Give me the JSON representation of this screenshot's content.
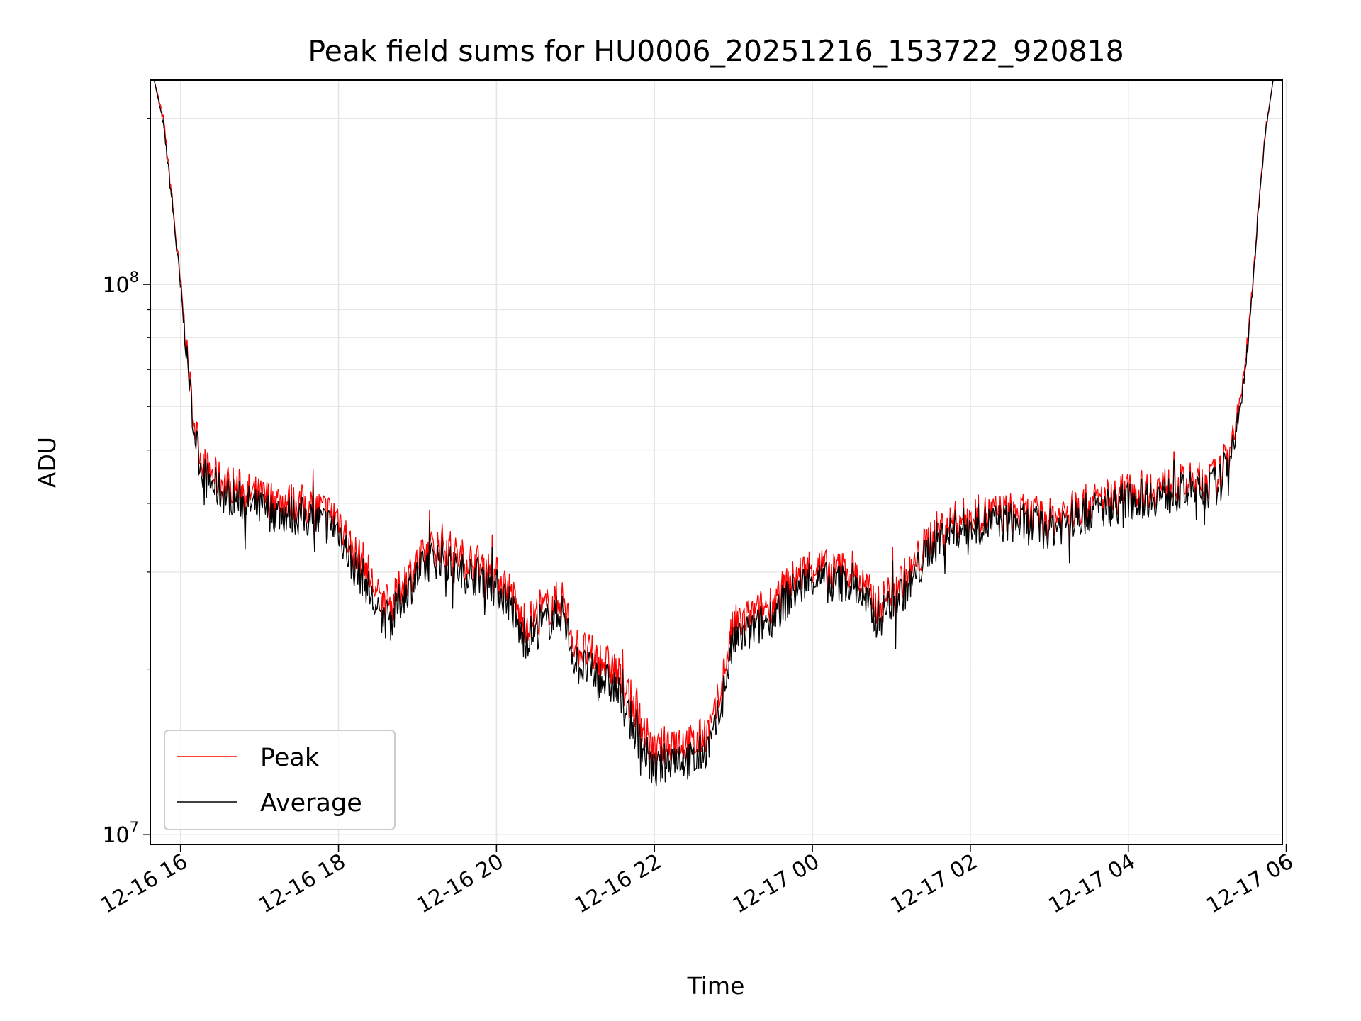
{
  "chart_data": {
    "type": "line",
    "title": "Peak field sums for HU0006_20251216_153722_920818",
    "xlabel": "Time",
    "ylabel": "ADU",
    "y_scale": "log",
    "grid": true,
    "legend_position": "lower-left",
    "x_ticks": [
      "12-16 16",
      "12-16 18",
      "12-16 20",
      "12-16 22",
      "12-17 00",
      "12-17 02",
      "12-17 04",
      "12-17 06"
    ],
    "y_ticks": [
      {
        "value": 10000000,
        "base": "10",
        "exp": "7"
      },
      {
        "value": 100000000,
        "base": "10",
        "exp": "8"
      }
    ],
    "xlim": [
      "2025-12-16T15:37",
      "2025-12-17T05:57"
    ],
    "ylim": [
      9600000,
      235000000
    ],
    "series": [
      {
        "name": "Peak",
        "color": "#ff0000",
        "points": [
          [
            "2025-12-16T15:40",
            235000000
          ],
          [
            "2025-12-16T15:47",
            200000000
          ],
          [
            "2025-12-16T15:54",
            140000000
          ],
          [
            "2025-12-16T16:00",
            100000000
          ],
          [
            "2025-12-16T16:05",
            75000000
          ],
          [
            "2025-12-16T16:10",
            57000000
          ],
          [
            "2025-12-16T16:15",
            49000000
          ],
          [
            "2025-12-16T16:20",
            46000000
          ],
          [
            "2025-12-16T16:30",
            44000000
          ],
          [
            "2025-12-16T17:00",
            41000000
          ],
          [
            "2025-12-16T17:30",
            40000000
          ],
          [
            "2025-12-16T18:00",
            38000000
          ],
          [
            "2025-12-16T18:10",
            33000000
          ],
          [
            "2025-12-16T18:20",
            31000000
          ],
          [
            "2025-12-16T18:30",
            27000000
          ],
          [
            "2025-12-16T18:40",
            26000000
          ],
          [
            "2025-12-16T18:50",
            29000000
          ],
          [
            "2025-12-16T19:00",
            31000000
          ],
          [
            "2025-12-16T19:10",
            33000000
          ],
          [
            "2025-12-16T19:20",
            34000000
          ],
          [
            "2025-12-16T19:30",
            32000000
          ],
          [
            "2025-12-16T19:50",
            31000000
          ],
          [
            "2025-12-16T20:10",
            28000000
          ],
          [
            "2025-12-16T20:20",
            24000000
          ],
          [
            "2025-12-16T20:30",
            25000000
          ],
          [
            "2025-12-16T20:40",
            26000000
          ],
          [
            "2025-12-16T20:50",
            27000000
          ],
          [
            "2025-12-16T21:00",
            22000000
          ],
          [
            "2025-12-16T21:15",
            21000000
          ],
          [
            "2025-12-16T21:30",
            20000000
          ],
          [
            "2025-12-16T21:45",
            17000000
          ],
          [
            "2025-12-16T22:00",
            14000000
          ],
          [
            "2025-12-16T22:15",
            15000000
          ],
          [
            "2025-12-16T22:30",
            14500000
          ],
          [
            "2025-12-16T22:45",
            16000000
          ],
          [
            "2025-12-16T22:55",
            21000000
          ],
          [
            "2025-12-16T23:00",
            24000000
          ],
          [
            "2025-12-16T23:15",
            25000000
          ],
          [
            "2025-12-16T23:30",
            26500000
          ],
          [
            "2025-12-16T23:45",
            29000000
          ],
          [
            "2025-12-17T00:00",
            31000000
          ],
          [
            "2025-12-17T00:15",
            30000000
          ],
          [
            "2025-12-17T00:30",
            30500000
          ],
          [
            "2025-12-17T00:40",
            28000000
          ],
          [
            "2025-12-17T00:50",
            26000000
          ],
          [
            "2025-12-17T01:00",
            28000000
          ],
          [
            "2025-12-17T01:15",
            30000000
          ],
          [
            "2025-12-17T01:30",
            35000000
          ],
          [
            "2025-12-17T01:45",
            37000000
          ],
          [
            "2025-12-17T02:00",
            38000000
          ],
          [
            "2025-12-17T02:30",
            38500000
          ],
          [
            "2025-12-17T03:00",
            37500000
          ],
          [
            "2025-12-17T03:30",
            40000000
          ],
          [
            "2025-12-17T04:00",
            42000000
          ],
          [
            "2025-12-17T04:30",
            43000000
          ],
          [
            "2025-12-17T05:00",
            44000000
          ],
          [
            "2025-12-17T05:10",
            45000000
          ],
          [
            "2025-12-17T05:18",
            52000000
          ],
          [
            "2025-12-17T05:25",
            60000000
          ],
          [
            "2025-12-17T05:32",
            85000000
          ],
          [
            "2025-12-17T05:38",
            130000000
          ],
          [
            "2025-12-17T05:44",
            190000000
          ],
          [
            "2025-12-17T05:50",
            235000000
          ]
        ]
      },
      {
        "name": "Average",
        "color": "#000000",
        "points": [
          [
            "2025-12-16T15:40",
            235000000
          ],
          [
            "2025-12-16T15:47",
            195000000
          ],
          [
            "2025-12-16T15:54",
            138000000
          ],
          [
            "2025-12-16T16:00",
            98000000
          ],
          [
            "2025-12-16T16:05",
            73000000
          ],
          [
            "2025-12-16T16:10",
            55000000
          ],
          [
            "2025-12-16T16:15",
            47000000
          ],
          [
            "2025-12-16T16:20",
            44000000
          ],
          [
            "2025-12-16T16:30",
            42000000
          ],
          [
            "2025-12-16T17:00",
            39000000
          ],
          [
            "2025-12-16T17:30",
            38000000
          ],
          [
            "2025-12-16T18:00",
            36000000
          ],
          [
            "2025-12-16T18:10",
            31000000
          ],
          [
            "2025-12-16T18:20",
            29000000
          ],
          [
            "2025-12-16T18:30",
            25000000
          ],
          [
            "2025-12-16T18:40",
            24500000
          ],
          [
            "2025-12-16T18:50",
            27500000
          ],
          [
            "2025-12-16T19:00",
            29500000
          ],
          [
            "2025-12-16T19:10",
            31500000
          ],
          [
            "2025-12-16T19:20",
            32000000
          ],
          [
            "2025-12-16T19:30",
            30000000
          ],
          [
            "2025-12-16T19:50",
            29500000
          ],
          [
            "2025-12-16T20:10",
            26500000
          ],
          [
            "2025-12-16T20:20",
            22500000
          ],
          [
            "2025-12-16T20:30",
            23500000
          ],
          [
            "2025-12-16T20:40",
            24500000
          ],
          [
            "2025-12-16T20:50",
            25500000
          ],
          [
            "2025-12-16T21:00",
            20500000
          ],
          [
            "2025-12-16T21:15",
            19500000
          ],
          [
            "2025-12-16T21:30",
            18500000
          ],
          [
            "2025-12-16T21:45",
            15500000
          ],
          [
            "2025-12-16T22:00",
            13000000
          ],
          [
            "2025-12-16T22:15",
            14000000
          ],
          [
            "2025-12-16T22:30",
            13500000
          ],
          [
            "2025-12-16T22:45",
            15000000
          ],
          [
            "2025-12-16T22:55",
            19500000
          ],
          [
            "2025-12-16T23:00",
            22500000
          ],
          [
            "2025-12-16T23:15",
            23500000
          ],
          [
            "2025-12-16T23:30",
            25000000
          ],
          [
            "2025-12-16T23:45",
            27500000
          ],
          [
            "2025-12-17T00:00",
            29500000
          ],
          [
            "2025-12-17T00:15",
            28500000
          ],
          [
            "2025-12-17T00:30",
            29000000
          ],
          [
            "2025-12-17T00:40",
            26500000
          ],
          [
            "2025-12-17T00:50",
            24500000
          ],
          [
            "2025-12-17T01:00",
            26500000
          ],
          [
            "2025-12-17T01:15",
            28500000
          ],
          [
            "2025-12-17T01:30",
            33500000
          ],
          [
            "2025-12-17T01:45",
            35500000
          ],
          [
            "2025-12-17T02:00",
            36500000
          ],
          [
            "2025-12-17T02:30",
            37000000
          ],
          [
            "2025-12-17T03:00",
            36000000
          ],
          [
            "2025-12-17T03:30",
            38500000
          ],
          [
            "2025-12-17T04:00",
            40500000
          ],
          [
            "2025-12-17T04:30",
            41500000
          ],
          [
            "2025-12-17T05:00",
            42500000
          ],
          [
            "2025-12-17T05:10",
            43500000
          ],
          [
            "2025-12-17T05:18",
            50000000
          ],
          [
            "2025-12-17T05:25",
            58000000
          ],
          [
            "2025-12-17T05:32",
            83000000
          ],
          [
            "2025-12-17T05:38",
            128000000
          ],
          [
            "2025-12-17T05:44",
            188000000
          ],
          [
            "2025-12-17T05:50",
            235000000
          ]
        ]
      }
    ]
  }
}
